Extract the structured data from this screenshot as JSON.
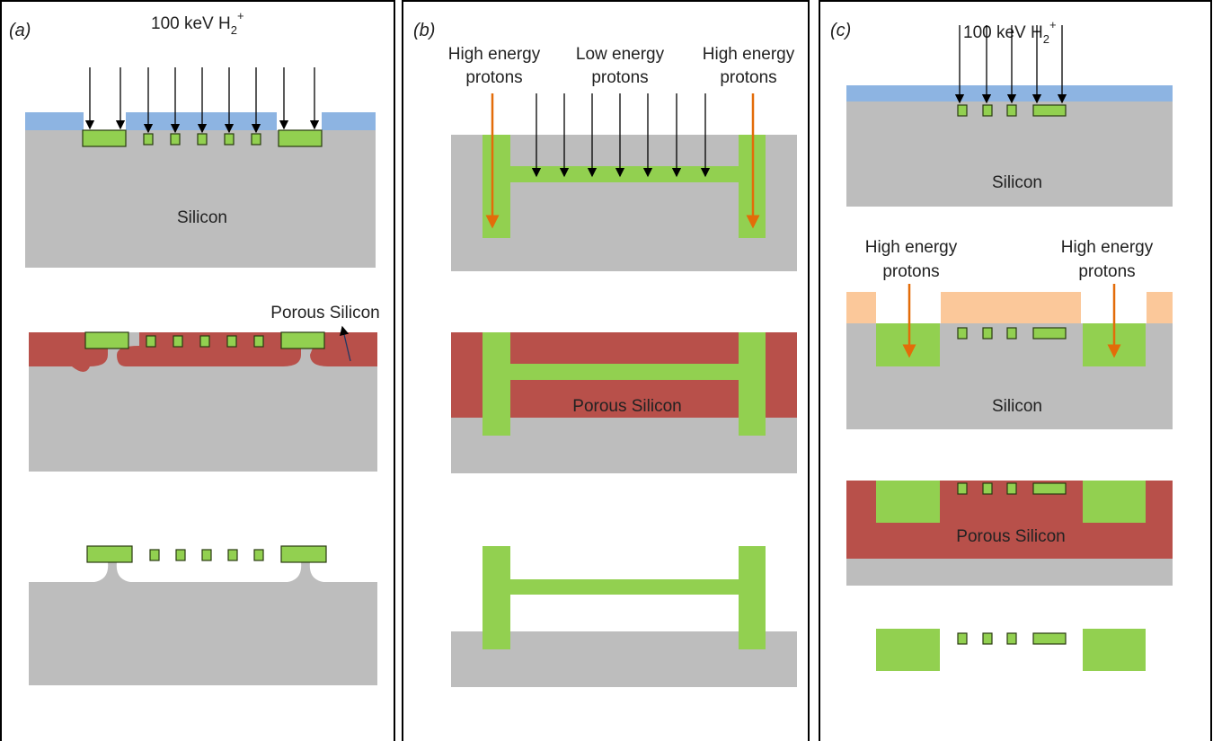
{
  "panels": [
    {
      "label": "(a)",
      "beam": {
        "main": "100 keV H",
        "sub": "2",
        "sup": "+"
      },
      "silicon": "Silicon",
      "porous": "Porous Silicon"
    },
    {
      "label": "(b)",
      "left_protons": [
        "High energy",
        "protons"
      ],
      "mid_protons": [
        "Low energy",
        "protons"
      ],
      "right_protons": [
        "High energy",
        "protons"
      ],
      "porous": "Porous Silicon"
    },
    {
      "label": "(c)",
      "beam": {
        "main": "100 keV H",
        "sub": "2",
        "sup": "+"
      },
      "silicon_top": "Silicon",
      "left_protons": [
        "High energy",
        "protons"
      ],
      "right_protons": [
        "High energy",
        "protons"
      ],
      "silicon_mid": "Silicon",
      "porous": "Porous Silicon"
    }
  ]
}
